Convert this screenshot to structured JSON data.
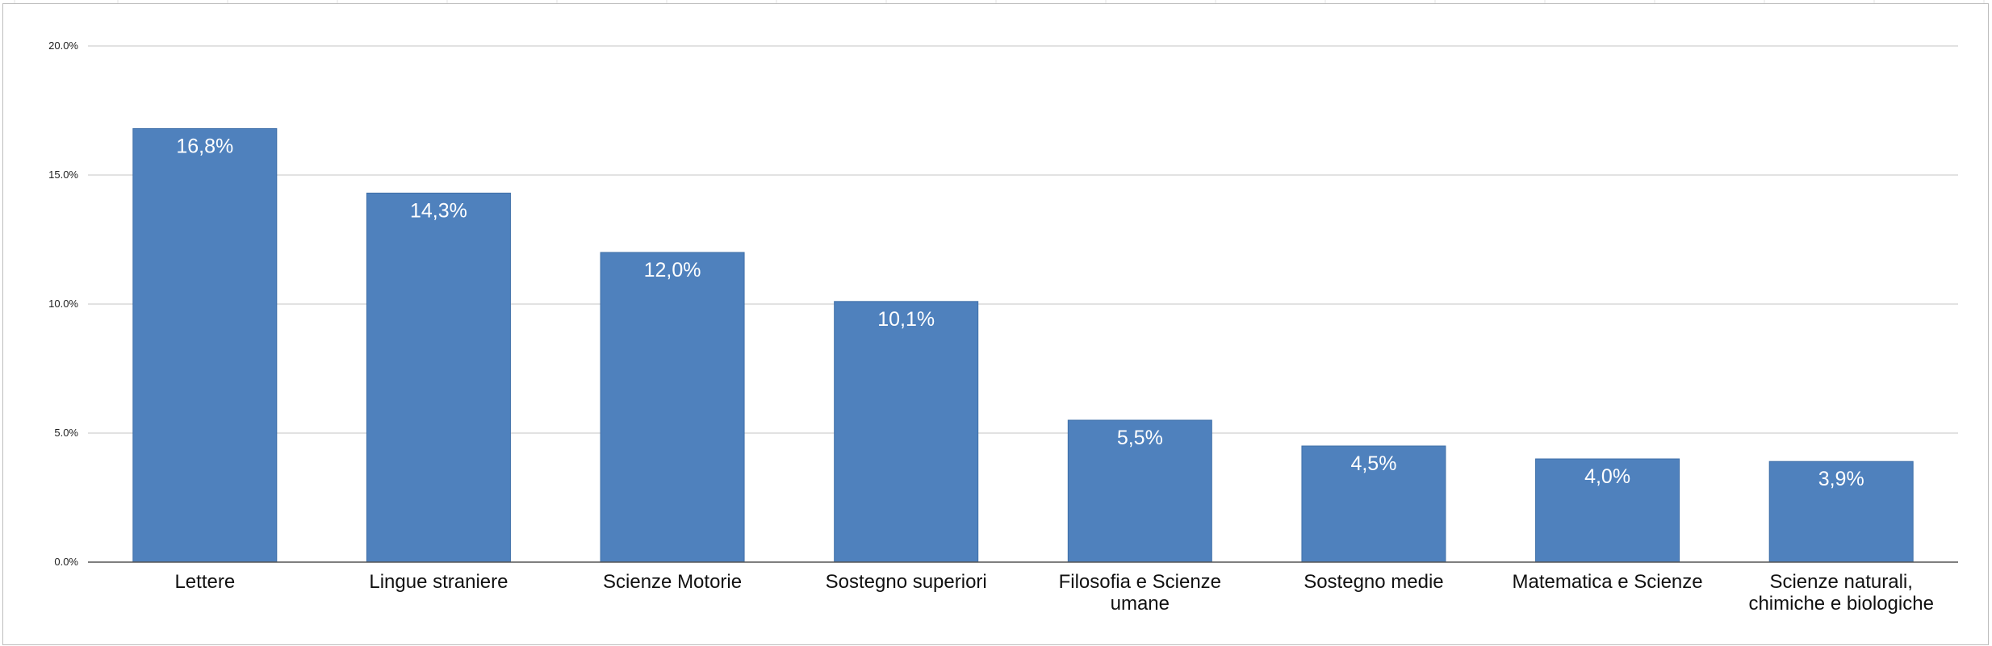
{
  "chart_data": {
    "type": "bar",
    "title": "",
    "xlabel": "",
    "ylabel": "",
    "categories": [
      [
        "Lettere"
      ],
      [
        "Lingue straniere"
      ],
      [
        "Scienze Motorie"
      ],
      [
        "Sostegno superiori"
      ],
      [
        "Filosofia e Scienze",
        "umane"
      ],
      [
        "Sostegno medie"
      ],
      [
        "Matematica e Scienze"
      ],
      [
        "Scienze naturali,",
        "chimiche e biologiche"
      ]
    ],
    "values": [
      16.8,
      14.3,
      12.0,
      10.1,
      5.5,
      4.5,
      4.0,
      3.9
    ],
    "data_labels": [
      "16,8%",
      "14,3%",
      "12,0%",
      "10,1%",
      "5,5%",
      "4,5%",
      "4,0%",
      "3,9%"
    ],
    "ylim": [
      0,
      20
    ],
    "yticks": [
      0,
      5,
      10,
      15,
      20
    ],
    "ytick_labels": [
      "0.0%",
      "5.0%",
      "10.0%",
      "15.0%",
      "20.0%"
    ],
    "grid": true,
    "legend": "none",
    "colors": {
      "bar": "#4f81bd",
      "grid": "#d9d9d9",
      "axis": "#555555",
      "data_label": "#ffffff"
    }
  }
}
